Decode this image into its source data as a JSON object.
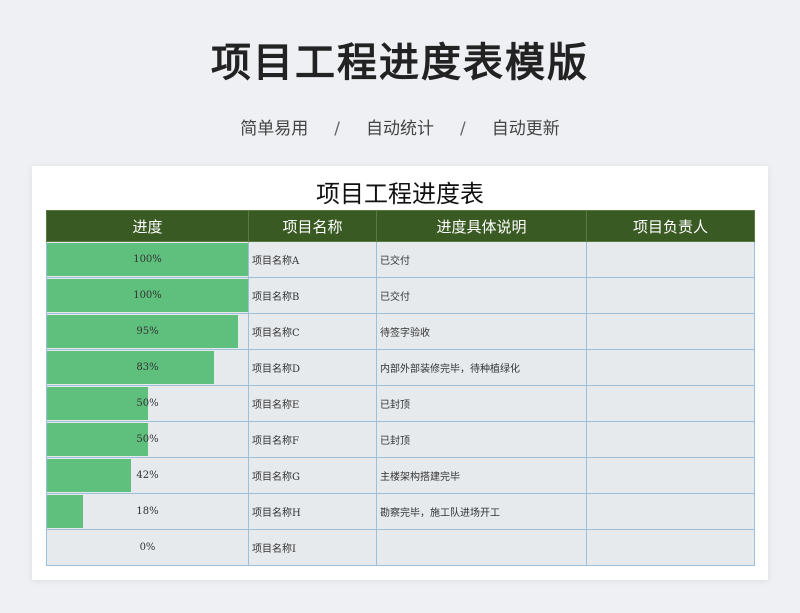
{
  "header": {
    "title": "项目工程进度表模版",
    "subtitle_items": [
      "简单易用",
      "自动统计",
      "自动更新"
    ],
    "separator": "/"
  },
  "sheet": {
    "title": "项目工程进度表",
    "columns": [
      "进度",
      "项目名称",
      "进度具体说明",
      "项目负责人"
    ],
    "rows": [
      {
        "progress": 100,
        "progress_label": "100%",
        "name": "项目名称A",
        "description": "已交付",
        "owner": ""
      },
      {
        "progress": 100,
        "progress_label": "100%",
        "name": "项目名称B",
        "description": "已交付",
        "owner": ""
      },
      {
        "progress": 95,
        "progress_label": "95%",
        "name": "项目名称C",
        "description": "待签字验收",
        "owner": ""
      },
      {
        "progress": 83,
        "progress_label": "83%",
        "name": "项目名称D",
        "description": "内部外部装修完毕，待种植绿化",
        "owner": ""
      },
      {
        "progress": 50,
        "progress_label": "50%",
        "name": "项目名称E",
        "description": "已封顶",
        "owner": ""
      },
      {
        "progress": 50,
        "progress_label": "50%",
        "name": "项目名称F",
        "description": "已封顶",
        "owner": ""
      },
      {
        "progress": 42,
        "progress_label": "42%",
        "name": "项目名称G",
        "description": "主楼架构搭建完毕",
        "owner": ""
      },
      {
        "progress": 18,
        "progress_label": "18%",
        "name": "项目名称H",
        "description": "勘察完毕，施工队进场开工",
        "owner": ""
      },
      {
        "progress": 0,
        "progress_label": "0%",
        "name": "项目名称I",
        "description": "",
        "owner": ""
      }
    ]
  },
  "colors": {
    "header_bg": "#3a5a23",
    "bar": "#5fc07d",
    "cell_bg": "#e6eaed",
    "grid": "#9cc0dc"
  }
}
